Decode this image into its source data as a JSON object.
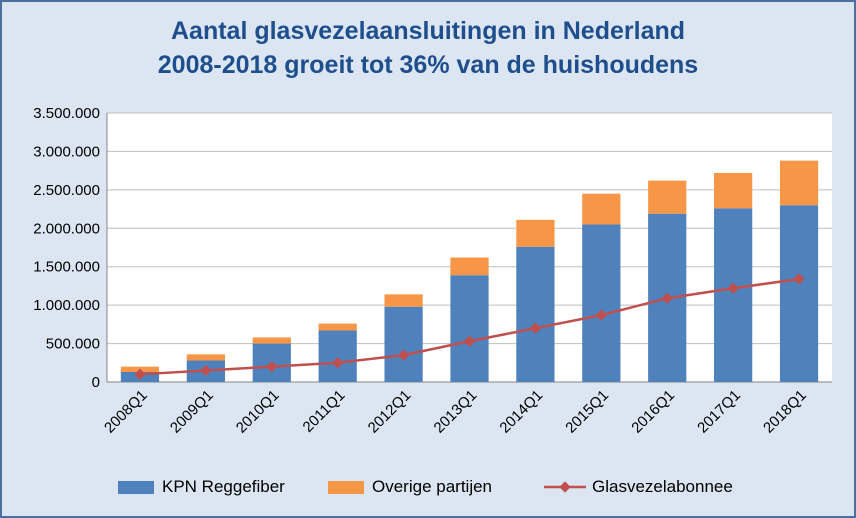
{
  "title": {
    "line1": "Aantal glasvezelaansluitingen in Nederland",
    "line2": "2008-2018 groeit tot 36% van de huishoudens"
  },
  "colors": {
    "kpn": "#4f81bd",
    "overige": "#f79646",
    "line": "#c0504d",
    "plot_bg": "#ffffff",
    "chart_bg": "#dce6f2"
  },
  "chart_data": {
    "type": "bar",
    "stacked": true,
    "title": "Aantal glasvezelaansluitingen in Nederland 2008-2018 groeit tot 36% van de huishoudens",
    "categories": [
      "2008Q1",
      "2009Q1",
      "2010Q1",
      "2011Q1",
      "2012Q1",
      "2013Q1",
      "2014Q1",
      "2015Q1",
      "2016Q1",
      "2017Q1",
      "2018Q1"
    ],
    "series": [
      {
        "name": "KPN Reggefiber",
        "kind": "bar",
        "values": [
          130000,
          280000,
          500000,
          670000,
          980000,
          1390000,
          1760000,
          2050000,
          2190000,
          2260000,
          2300000
        ]
      },
      {
        "name": "Overige partijen",
        "kind": "bar",
        "values": [
          70000,
          80000,
          80000,
          90000,
          160000,
          230000,
          350000,
          400000,
          430000,
          460000,
          580000
        ]
      },
      {
        "name": "Glasvezelabonnee",
        "kind": "line",
        "values": [
          100000,
          150000,
          200000,
          250000,
          350000,
          530000,
          700000,
          870000,
          1090000,
          1220000,
          1340000
        ]
      }
    ],
    "ylim": [
      0,
      3500000
    ],
    "yticks": [
      "0",
      "500.000",
      "1.000.000",
      "1.500.000",
      "2.000.000",
      "2.500.000",
      "3.000.000",
      "3.500.000"
    ],
    "grid": true,
    "legend": "bottom"
  }
}
